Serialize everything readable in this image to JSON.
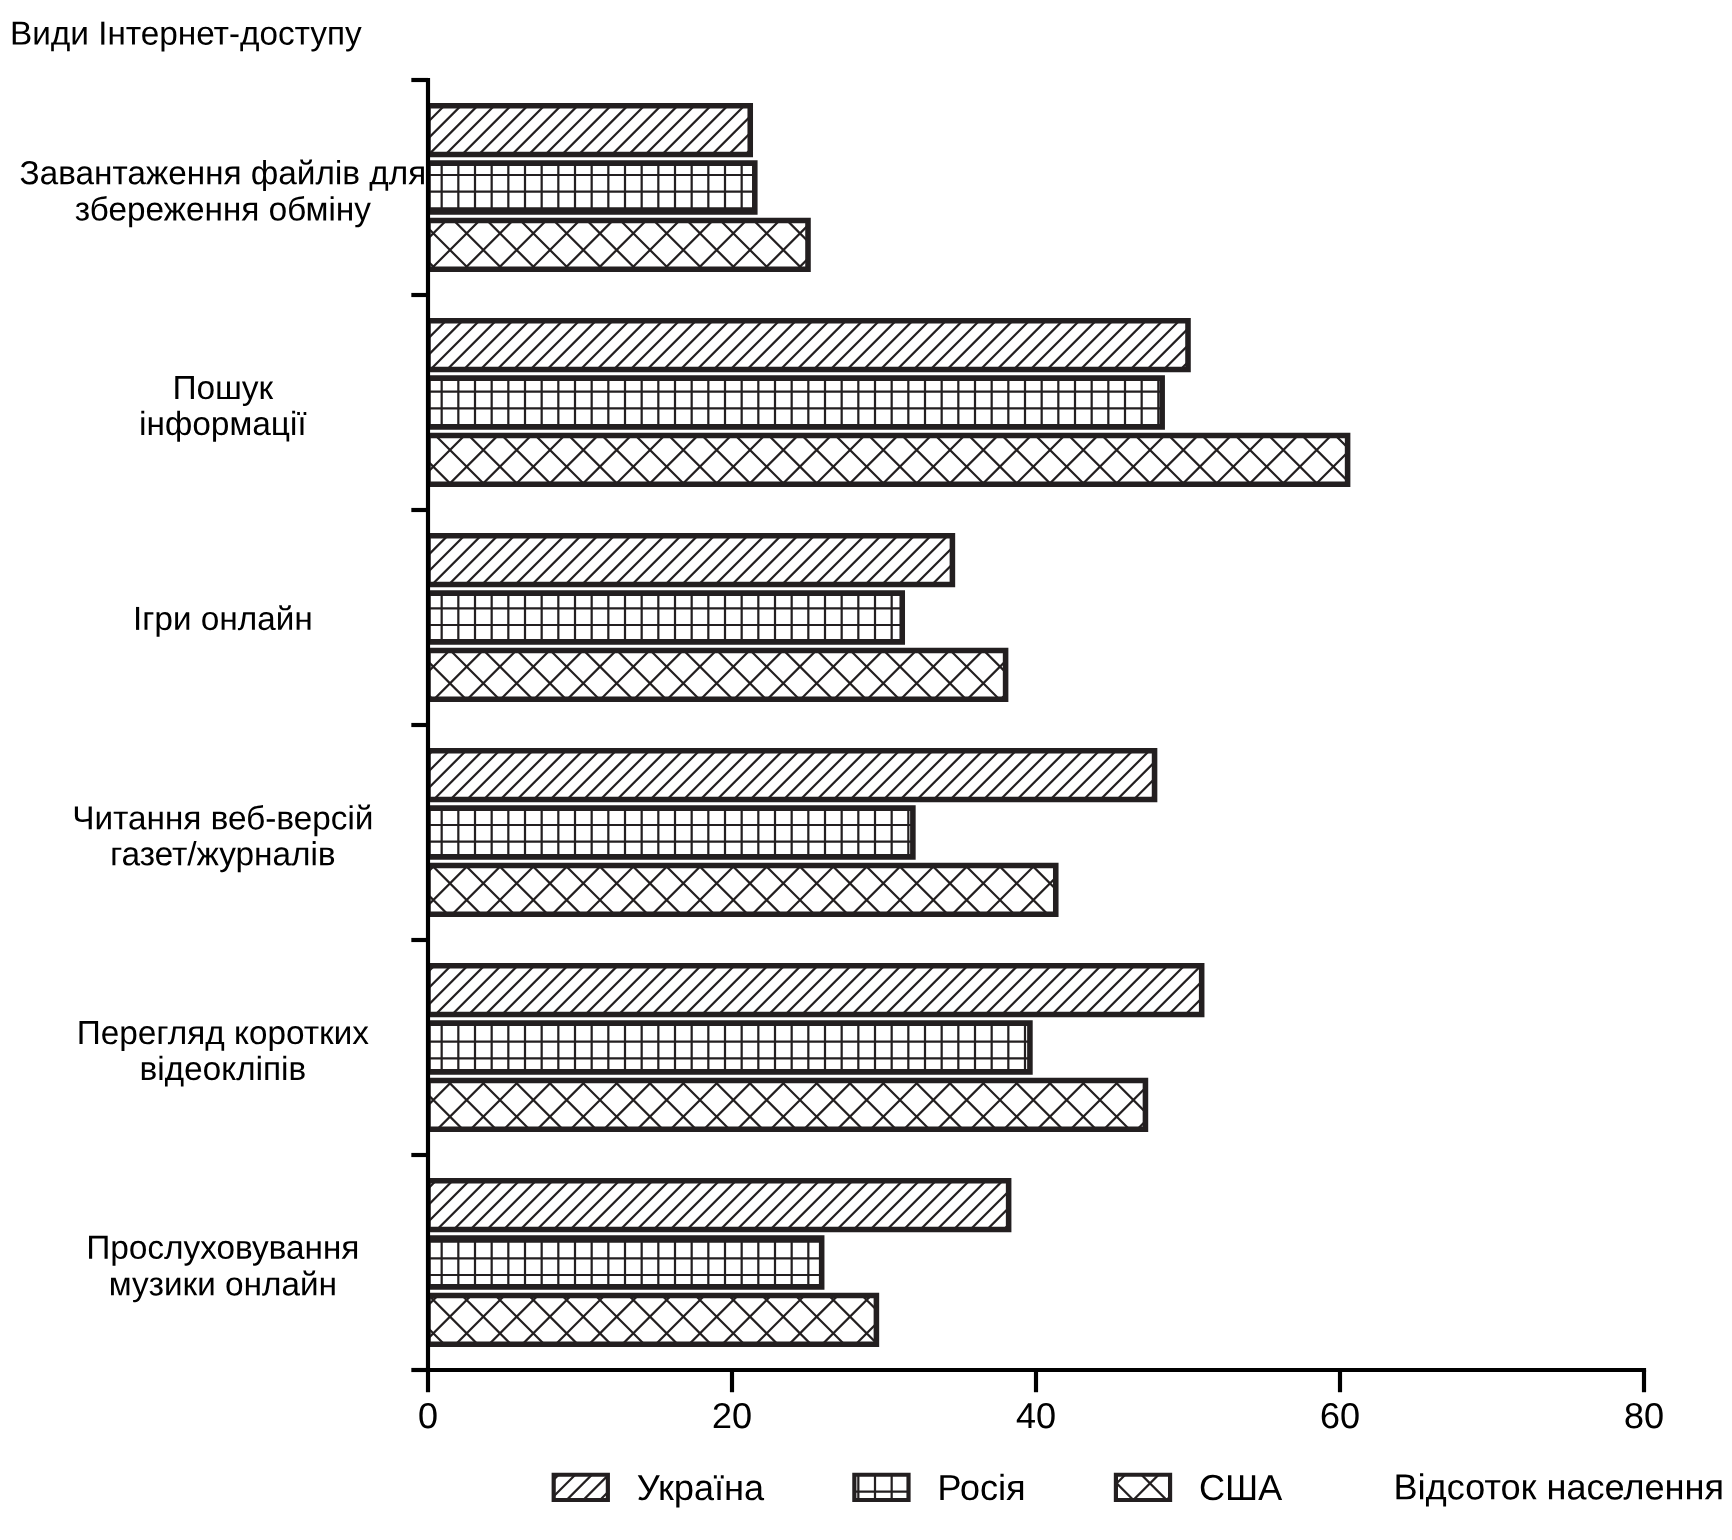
{
  "chart_data": {
    "type": "bar",
    "orientation": "horizontal",
    "ylabel": "Види Інтернет-доступу",
    "xlabel": "Відсоток населення",
    "categories": [
      "Завантаження файлів для\nзбереження обміну",
      "Пошук\nінформації",
      "Ігри онлайн",
      "Читання веб-версій\nгазет/журналів",
      "Перегляд коротких\nвідеокліпів",
      "Прослуховування\nмузики онлайн"
    ],
    "series": [
      {
        "name": "Україна",
        "color": "#231f20",
        "values": [
          21.2,
          50,
          34.5,
          47.8,
          50.9,
          38.2
        ]
      },
      {
        "name": "Росія",
        "color": "#231f20",
        "values": [
          21.5,
          48.3,
          31.2,
          31.9,
          39.6,
          25.9
        ]
      },
      {
        "name": "США",
        "color": "#231f20",
        "values": [
          25,
          60.5,
          38,
          41.3,
          47.2,
          29.5
        ]
      }
    ],
    "xlim": [
      0,
      80
    ],
    "xticks": [
      0,
      20,
      40,
      60,
      80
    ],
    "grid": false,
    "legend": "bottom"
  }
}
